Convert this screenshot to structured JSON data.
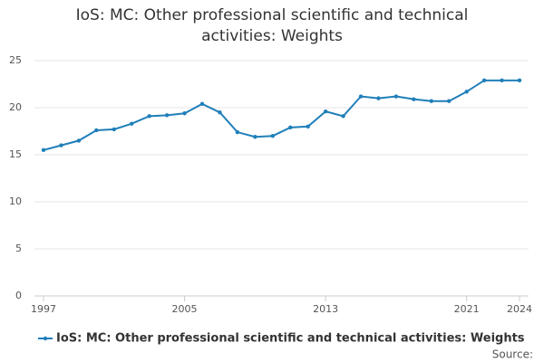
{
  "chart_data": {
    "type": "line",
    "title": "IoS: MC: Other professional scientific and technical activities: Weights",
    "x": [
      1997,
      1998,
      1999,
      2000,
      2001,
      2002,
      2003,
      2004,
      2005,
      2006,
      2007,
      2008,
      2009,
      2010,
      2011,
      2012,
      2013,
      2014,
      2015,
      2016,
      2017,
      2018,
      2019,
      2020,
      2021,
      2022,
      2023,
      2024
    ],
    "series": [
      {
        "name": "IoS: MC: Other professional scientific and technical activities: Weights",
        "color": "#1f7fb9",
        "values": [
          15.5,
          16.0,
          16.5,
          17.6,
          17.7,
          18.3,
          19.1,
          19.2,
          19.4,
          20.4,
          19.5,
          17.4,
          16.9,
          17.0,
          17.9,
          18.0,
          19.6,
          19.1,
          21.2,
          21.0,
          21.2,
          20.9,
          20.7,
          20.7,
          21.7,
          22.9,
          22.9,
          22.9
        ]
      }
    ],
    "xlim": [
      1997,
      2024
    ],
    "xticks": [
      1997,
      2005,
      2013,
      2021,
      2024
    ],
    "ylim": [
      0,
      25
    ],
    "yticks": [
      0,
      5,
      10,
      15,
      20,
      25
    ],
    "grid": true,
    "legend": "bottom",
    "source": "Source:"
  }
}
